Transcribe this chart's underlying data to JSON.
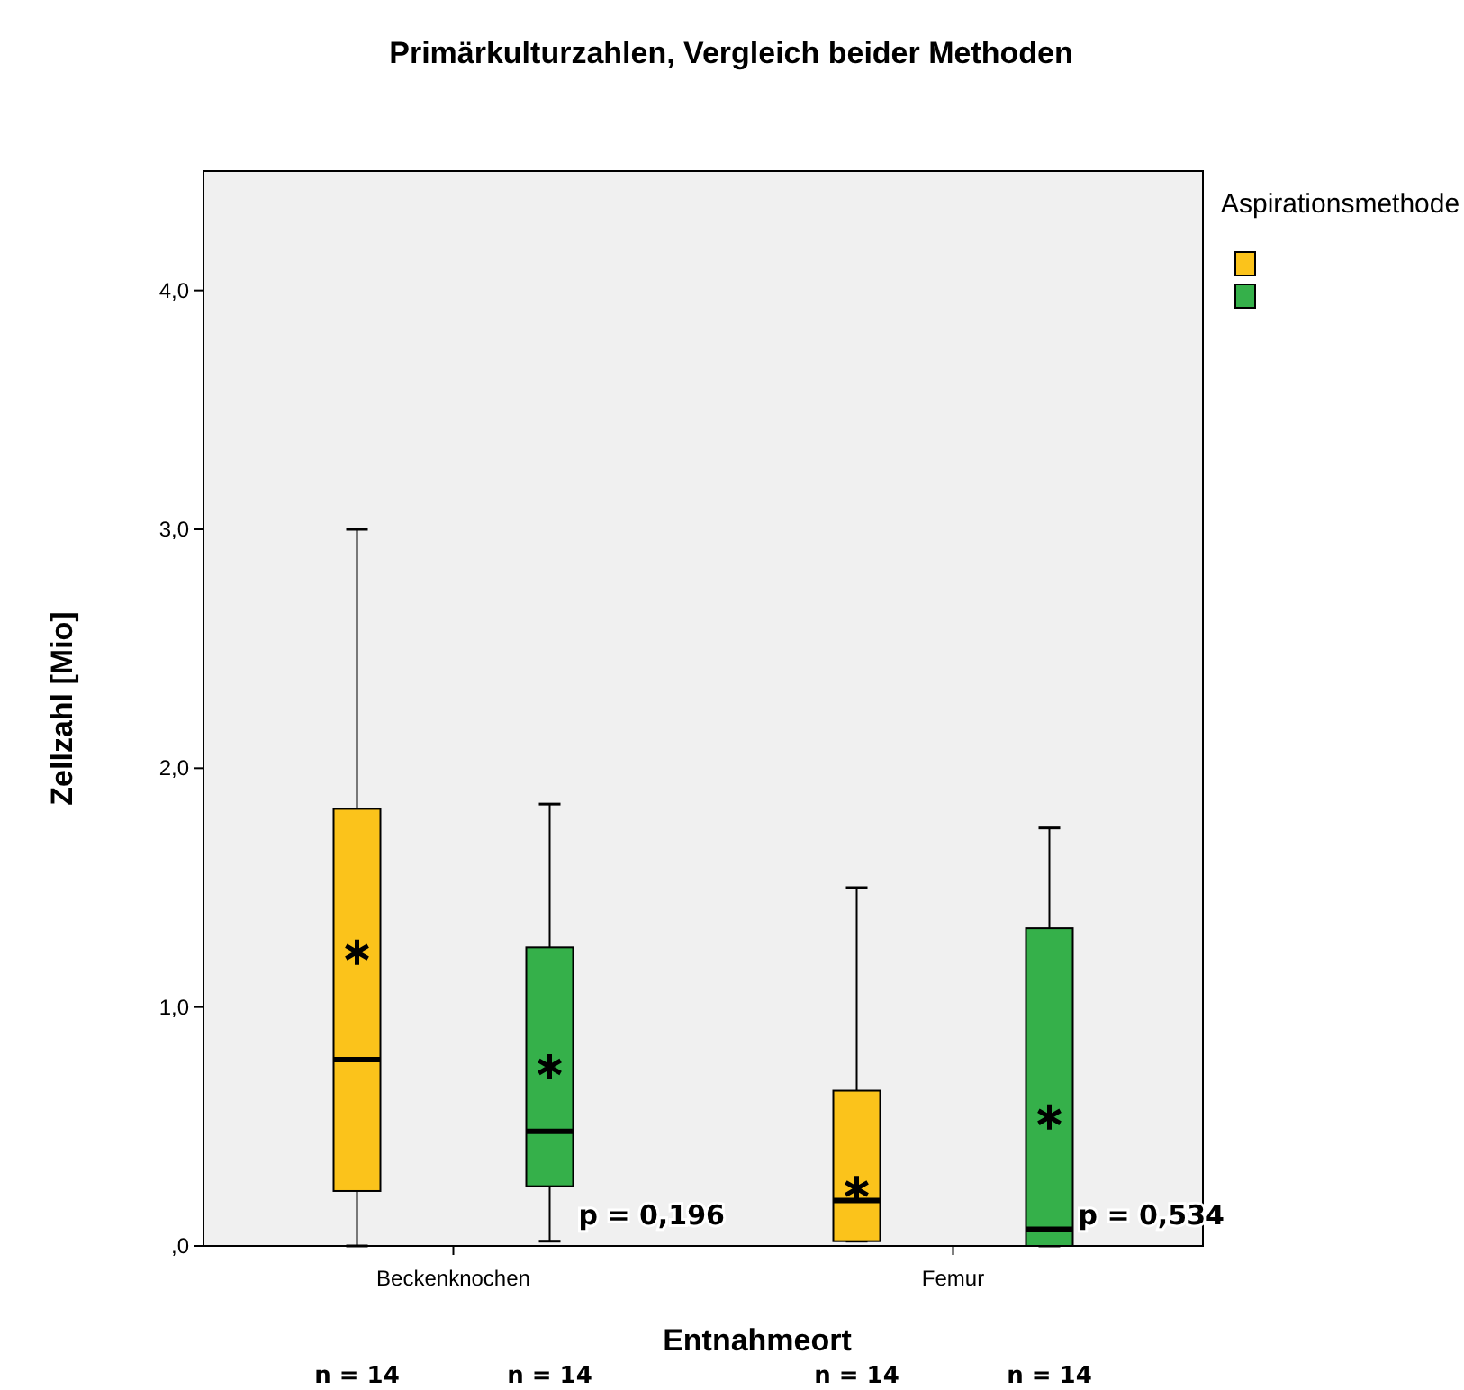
{
  "chart_data": {
    "type": "box",
    "title": "Primärkulturzahlen, Vergleich beider Methoden",
    "xlabel": "Entnahmeort",
    "ylabel": "Zellzahl [Mio]",
    "legend_title": "Aspirationsmethode",
    "categories": [
      "Beckenknochen",
      "Femur"
    ],
    "ylim": [
      0,
      4.5
    ],
    "yticks": [
      {
        "value": 0,
        "label": ",0"
      },
      {
        "value": 1,
        "label": "1,0"
      },
      {
        "value": 2,
        "label": "2,0"
      },
      {
        "value": 3,
        "label": "3,0"
      },
      {
        "value": 4,
        "label": "4,0"
      }
    ],
    "grid": false,
    "series": [
      {
        "color": "#fbc31b",
        "boxes": [
          {
            "low": 0,
            "q1": 0.23,
            "median": 0.78,
            "q3": 1.83,
            "high": 3.0,
            "mean": 1.23
          },
          {
            "low": 0.02,
            "q1": 0.02,
            "median": 0.19,
            "q3": 0.65,
            "high": 1.5,
            "mean": 0.24
          }
        ]
      },
      {
        "color": "#35b04a",
        "boxes": [
          {
            "low": 0.02,
            "q1": 0.25,
            "median": 0.48,
            "q3": 1.25,
            "high": 1.85,
            "mean": 0.75
          },
          {
            "low": 0,
            "q1": 0,
            "median": 0.07,
            "q3": 1.33,
            "high": 1.75,
            "mean": 0.54
          }
        ]
      }
    ],
    "annotations": [
      "p = 0,196",
      "p = 0,534",
      "n = 14",
      "n = 14",
      "n = 14",
      "n = 14"
    ]
  }
}
